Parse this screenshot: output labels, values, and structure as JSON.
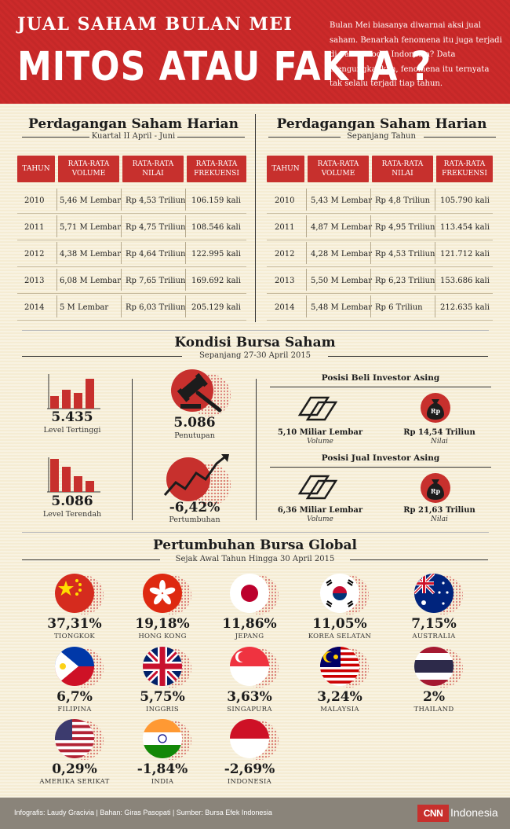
{
  "header": {
    "subtitle": "JUAL SAHAM  BULAN MEI",
    "title": "MITOS ATAU FAKTA ?",
    "description": "Bulan Mei biasanya diwarnai aksi jual saham. Benarkah fenomena itu juga terjadi di pasar modal Indonesia? Data mengungkapkan, fenomena itu ternyata tak selalu terjadi tiap tahun."
  },
  "table_left": {
    "title": "Perdagangan Saham Harian",
    "subtitle": "Kuartal II April - Juni",
    "headers": [
      "TAHUN",
      "RATA-RATA VOLUME",
      "RATA-RATA NILAI",
      "RATA-RATA FREKUENSI"
    ],
    "rows": [
      [
        "2010",
        "5,46 M Lembar",
        "Rp 4,53 Triliun",
        "106.159 kali"
      ],
      [
        "2011",
        "5,71 M Lembar",
        "Rp 4,75 Triliun",
        "108.546 kali"
      ],
      [
        "2012",
        "4,38 M Lembar",
        "Rp 4,64 Triliun",
        "122.995 kali"
      ],
      [
        "2013",
        "6,08 M Lembar",
        "Rp 7,65 Triliun",
        "169.692 kali"
      ],
      [
        "2014",
        "5 M Lembar",
        "Rp 6,03 Triliun",
        "205.129 kali"
      ]
    ]
  },
  "table_right": {
    "title": "Perdagangan Saham Harian",
    "subtitle": "Sepanjang Tahun",
    "headers": [
      "TAHUN",
      "RATA-RATA VOLUME",
      "RATA-RATA NILAI",
      "RATA-RATA FREKUENSI"
    ],
    "rows": [
      [
        "2010",
        "5,43 M Lembar",
        "Rp 4,8 Triliun",
        "105.790 kali"
      ],
      [
        "2011",
        "4,87 M Lembar",
        "Rp 4,95 Triliun",
        "113.454 kali"
      ],
      [
        "2012",
        "4,28 M Lembar",
        "Rp 4,53 Triliun",
        "121.712 kali"
      ],
      [
        "2013",
        "5,50 M Lembar",
        "Rp 6,23 Triliun",
        "153.686 kali"
      ],
      [
        "2014",
        "5,48 M Lembar",
        "Rp 6 Triliun",
        "212.635 kali"
      ]
    ]
  },
  "kondisi": {
    "title": "Kondisi Bursa Saham",
    "subtitle": "Sepanjang 27-30 April 2015",
    "level_tertinggi_value": "5.435",
    "level_tertinggi_label": "Level Tertinggi",
    "level_terendah_value": "5.086",
    "level_terendah_label": "Level Terendah",
    "penutupan_value": "5.086",
    "penutupan_label": "Penutupan",
    "pertumbuhan_value": "-6,42%",
    "pertumbuhan_label": "Pertumbuhan",
    "beli_title": "Posisi Beli Investor Asing",
    "beli_volume": "5,10 Miliar Lembar",
    "beli_nilai": "Rp 14,54 Triliun",
    "jual_title": "Posisi Jual Investor Asing",
    "jual_volume": "6,36 Miliar Lembar",
    "jual_nilai": "Rp 21,63 Triliun",
    "volume_label": "Volume",
    "nilai_label": "Nilai",
    "rp_badge": "Rp"
  },
  "global": {
    "title": "Pertumbuhan Bursa Global",
    "subtitle": "Sejak Awal Tahun Hingga 30 April 2015",
    "countries": [
      {
        "value": "37,31%",
        "name": "TIONGKOK"
      },
      {
        "value": "19,18%",
        "name": "HONG KONG"
      },
      {
        "value": "11,86%",
        "name": "JEPANG"
      },
      {
        "value": "11,05%",
        "name": "KOREA SELATAN"
      },
      {
        "value": "7,15%",
        "name": "AUSTRALIA"
      },
      {
        "value": "6,7%",
        "name": "FILIPINA"
      },
      {
        "value": "5,75%",
        "name": "INGGRIS"
      },
      {
        "value": "3,63%",
        "name": "SINGAPURA"
      },
      {
        "value": "3,24%",
        "name": "MALAYSIA"
      },
      {
        "value": "2%",
        "name": "THAILAND"
      },
      {
        "value": "0,29%",
        "name": "AMERIKA SERIKAT"
      },
      {
        "value": "-1,84%",
        "name": "INDIA"
      },
      {
        "value": "-2,69%",
        "name": "INDONESIA"
      }
    ]
  },
  "footer": {
    "credits": "Infografis: Laudy Gracivia | Bahan: Giras Pasopati | Sumber: Bursa Efek Indonesia",
    "logo": "CNN",
    "brand": "Indonesia"
  },
  "colors": {
    "accent": "#c7302d",
    "background": "#f5ecd3",
    "footer": "#8a847a"
  }
}
